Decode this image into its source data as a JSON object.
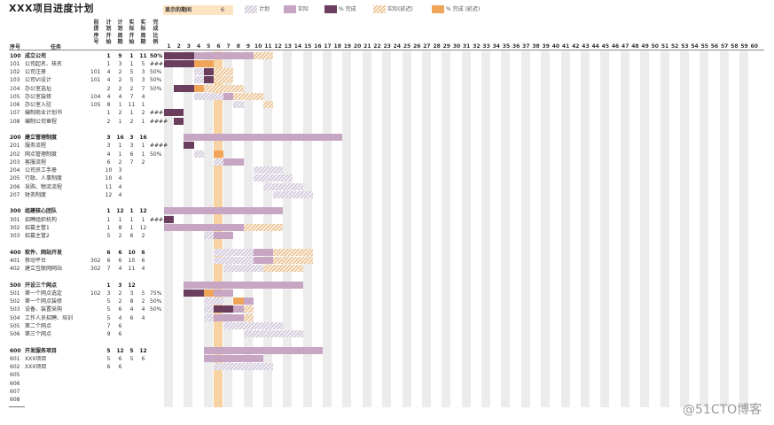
{
  "title": "XXX项目进度计划",
  "highlight": {
    "label": "显示的期间",
    "value": "6",
    "period": 6
  },
  "legend": [
    {
      "key": "plan",
      "label": "计划"
    },
    {
      "key": "actual",
      "label": "实际"
    },
    {
      "key": "done",
      "label": "% 完成"
    },
    {
      "key": "overdue",
      "label": "实际(延迟)"
    },
    {
      "key": "doneover",
      "label": "% 完成 (延迟)"
    }
  ],
  "headers": {
    "seq": "序号",
    "task": "任务",
    "pre": "前提序号",
    "plan_start": "计划开始",
    "plan_dur": "计划周期",
    "act_start": "实际开始",
    "act_dur": "实际周期",
    "pct": "完成比例"
  },
  "days": [
    1,
    2,
    3,
    4,
    5,
    6,
    7,
    8,
    9,
    10,
    11,
    12,
    13,
    14,
    15,
    16,
    17,
    18,
    19,
    20,
    21,
    22,
    23,
    24,
    25,
    26,
    27,
    28,
    29,
    30,
    31,
    32,
    33,
    34,
    35,
    36,
    37,
    38,
    39,
    40,
    41,
    42,
    43,
    44,
    45,
    46,
    47,
    48,
    49,
    50,
    51,
    52,
    53,
    54,
    55,
    56,
    57,
    58,
    59,
    60
  ],
  "rows": [
    {
      "id": "100",
      "name": "成立公司",
      "pre": "",
      "ps": "1",
      "pd": "9",
      "as": "1",
      "ad": "11",
      "pct": "50%",
      "section": true
    },
    {
      "id": "101",
      "name": "公司起名、核名",
      "pre": "",
      "ps": "1",
      "pd": "3",
      "as": "1",
      "ad": "5",
      "pct": "####"
    },
    {
      "id": "102",
      "name": "公司注册",
      "pre": "101",
      "ps": "4",
      "pd": "2",
      "as": "5",
      "ad": "3",
      "pct": "50%"
    },
    {
      "id": "103",
      "name": "公司VI设计",
      "pre": "101",
      "ps": "4",
      "pd": "2",
      "as": "5",
      "ad": "3",
      "pct": "50%"
    },
    {
      "id": "104",
      "name": "办公室选址",
      "pre": "",
      "ps": "2",
      "pd": "2",
      "as": "2",
      "ad": "7",
      "pct": "50%"
    },
    {
      "id": "105",
      "name": "办公室装修",
      "pre": "104",
      "ps": "4",
      "pd": "4",
      "as": "7",
      "ad": "4",
      "pct": ""
    },
    {
      "id": "106",
      "name": "办公室入驻",
      "pre": "105",
      "ps": "8",
      "pd": "1",
      "as": "11",
      "ad": "1",
      "pct": ""
    },
    {
      "id": "107",
      "name": "编制商业计划书",
      "pre": "",
      "ps": "1",
      "pd": "2",
      "as": "1",
      "ad": "2",
      "pct": "####"
    },
    {
      "id": "108",
      "name": "编制公司章程",
      "pre": "",
      "ps": "2",
      "pd": "1",
      "as": "2",
      "ad": "1",
      "pct": "####"
    },
    {
      "id": "",
      "name": "",
      "pre": "",
      "ps": "",
      "pd": "",
      "as": "",
      "ad": "",
      "pct": ""
    },
    {
      "id": "200",
      "name": "建立管理制度",
      "pre": "",
      "ps": "3",
      "pd": "16",
      "as": "3",
      "ad": "16",
      "pct": "",
      "section": true
    },
    {
      "id": "201",
      "name": "服务流程",
      "pre": "",
      "ps": "3",
      "pd": "1",
      "as": "3",
      "ad": "1",
      "pct": "####"
    },
    {
      "id": "202",
      "name": "网点管理制度",
      "pre": "",
      "ps": "4",
      "pd": "1",
      "as": "6",
      "ad": "1",
      "pct": "50%"
    },
    {
      "id": "203",
      "name": "客服流程",
      "pre": "",
      "ps": "6",
      "pd": "2",
      "as": "7",
      "ad": "2",
      "pct": ""
    },
    {
      "id": "204",
      "name": "公司员工手册",
      "pre": "",
      "ps": "10",
      "pd": "3",
      "as": "",
      "ad": "",
      "pct": ""
    },
    {
      "id": "205",
      "name": "行政、人事制度",
      "pre": "",
      "ps": "10",
      "pd": "4",
      "as": "",
      "ad": "",
      "pct": ""
    },
    {
      "id": "206",
      "name": "采购、物流流程",
      "pre": "",
      "ps": "11",
      "pd": "4",
      "as": "",
      "ad": "",
      "pct": ""
    },
    {
      "id": "207",
      "name": "财务制度",
      "pre": "",
      "ps": "12",
      "pd": "4",
      "as": "",
      "ad": "",
      "pct": ""
    },
    {
      "id": "",
      "name": "",
      "pre": "",
      "ps": "",
      "pd": "",
      "as": "",
      "ad": "",
      "pct": ""
    },
    {
      "id": "300",
      "name": "组建核心团队",
      "pre": "",
      "ps": "1",
      "pd": "12",
      "as": "1",
      "ad": "12",
      "pct": "",
      "section": true
    },
    {
      "id": "301",
      "name": "招聘组织机构",
      "pre": "",
      "ps": "1",
      "pd": "1",
      "as": "1",
      "ad": "1",
      "pct": "####"
    },
    {
      "id": "302",
      "name": "招募主管1",
      "pre": "",
      "ps": "1",
      "pd": "8",
      "as": "1",
      "ad": "12",
      "pct": ""
    },
    {
      "id": "303",
      "name": "招募主管2",
      "pre": "",
      "ps": "5",
      "pd": "2",
      "as": "6",
      "ad": "2",
      "pct": ""
    },
    {
      "id": "",
      "name": "",
      "pre": "",
      "ps": "",
      "pd": "",
      "as": "",
      "ad": "",
      "pct": ""
    },
    {
      "id": "400",
      "name": "软件、网站开发",
      "pre": "",
      "ps": "6",
      "pd": "6",
      "as": "10",
      "ad": "6",
      "pct": "",
      "section": true
    },
    {
      "id": "401",
      "name": "移动平台",
      "pre": "302",
      "ps": "6",
      "pd": "6",
      "as": "10",
      "ad": "6",
      "pct": ""
    },
    {
      "id": "402",
      "name": "建立互联网网站",
      "pre": "302",
      "ps": "7",
      "pd": "4",
      "as": "11",
      "ad": "4",
      "pct": ""
    },
    {
      "id": "",
      "name": "",
      "pre": "",
      "ps": "",
      "pd": "",
      "as": "",
      "ad": "",
      "pct": ""
    },
    {
      "id": "500",
      "name": "开设三个网点",
      "pre": "",
      "ps": "1",
      "pd": "3",
      "as": "12",
      "ad": "",
      "pct": "",
      "section": true
    },
    {
      "id": "501",
      "name": "第一个网点选定",
      "pre": "102",
      "ps": "3",
      "pd": "2",
      "as": "3",
      "ad": "5",
      "pct": "75%"
    },
    {
      "id": "502",
      "name": "第一个网点装修",
      "pre": "",
      "ps": "5",
      "pd": "2",
      "as": "8",
      "ad": "2",
      "pct": "50%"
    },
    {
      "id": "503",
      "name": "设备、装置采购",
      "pre": "",
      "ps": "5",
      "pd": "6",
      "as": "4",
      "ad": "4",
      "pct": "50%"
    },
    {
      "id": "504",
      "name": "工作人员招聘、培训",
      "pre": "",
      "ps": "5",
      "pd": "4",
      "as": "6",
      "ad": "4",
      "pct": ""
    },
    {
      "id": "505",
      "name": "第二个网点",
      "pre": "",
      "ps": "7",
      "pd": "6",
      "as": "",
      "ad": "",
      "pct": ""
    },
    {
      "id": "506",
      "name": "第三个网点",
      "pre": "",
      "ps": "9",
      "pd": "6",
      "as": "",
      "ad": "",
      "pct": ""
    },
    {
      "id": "",
      "name": "",
      "pre": "",
      "ps": "",
      "pd": "",
      "as": "",
      "ad": "",
      "pct": ""
    },
    {
      "id": "600",
      "name": "开发服务项目",
      "pre": "",
      "ps": "5",
      "pd": "12",
      "as": "5",
      "ad": "12",
      "pct": "",
      "section": true
    },
    {
      "id": "601",
      "name": "XXX项目",
      "pre": "",
      "ps": "5",
      "pd": "6",
      "as": "5",
      "ad": "6",
      "pct": ""
    },
    {
      "id": "602",
      "name": "XXX项目",
      "pre": "",
      "ps": "6",
      "pd": "6",
      "as": "",
      "ad": "",
      "pct": ""
    },
    {
      "id": "605",
      "name": "",
      "pre": "",
      "ps": "",
      "pd": "",
      "as": "",
      "ad": "",
      "pct": ""
    },
    {
      "id": "606",
      "name": "",
      "pre": "",
      "ps": "",
      "pd": "",
      "as": "",
      "ad": "",
      "pct": ""
    },
    {
      "id": "607",
      "name": "",
      "pre": "",
      "ps": "",
      "pd": "",
      "as": "",
      "ad": "",
      "pct": ""
    },
    {
      "id": "608",
      "name": "",
      "pre": "",
      "ps": "",
      "pd": "",
      "as": "",
      "ad": "",
      "pct": ""
    }
  ],
  "bars": [
    {
      "row": 0,
      "start": 1,
      "dur": 9,
      "kind": "plan"
    },
    {
      "row": 0,
      "start": 1,
      "dur": 11,
      "kind": "actual"
    },
    {
      "row": 0,
      "start": 1,
      "dur": 3,
      "kind": "done"
    },
    {
      "row": 0,
      "start": 10,
      "dur": 2,
      "kind": "overdue"
    },
    {
      "row": 1,
      "start": 1,
      "dur": 3,
      "kind": "done"
    },
    {
      "row": 1,
      "start": 4,
      "dur": 2,
      "kind": "doneover"
    },
    {
      "row": 2,
      "start": 4,
      "dur": 2,
      "kind": "plan"
    },
    {
      "row": 2,
      "start": 5,
      "dur": 1,
      "kind": "done"
    },
    {
      "row": 2,
      "start": 6,
      "dur": 2,
      "kind": "overdue"
    },
    {
      "row": 3,
      "start": 4,
      "dur": 2,
      "kind": "plan"
    },
    {
      "row": 3,
      "start": 5,
      "dur": 1,
      "kind": "done"
    },
    {
      "row": 3,
      "start": 6,
      "dur": 2,
      "kind": "overdue"
    },
    {
      "row": 4,
      "start": 2,
      "dur": 2,
      "kind": "done"
    },
    {
      "row": 4,
      "start": 4,
      "dur": 1,
      "kind": "doneover"
    },
    {
      "row": 4,
      "start": 5,
      "dur": 4,
      "kind": "overdue"
    },
    {
      "row": 5,
      "start": 4,
      "dur": 4,
      "kind": "plan"
    },
    {
      "row": 5,
      "start": 7,
      "dur": 1,
      "kind": "actual"
    },
    {
      "row": 5,
      "start": 8,
      "dur": 3,
      "kind": "overdue"
    },
    {
      "row": 6,
      "start": 8,
      "dur": 1,
      "kind": "plan"
    },
    {
      "row": 6,
      "start": 11,
      "dur": 1,
      "kind": "overdue"
    },
    {
      "row": 7,
      "start": 1,
      "dur": 2,
      "kind": "done"
    },
    {
      "row": 8,
      "start": 2,
      "dur": 1,
      "kind": "done"
    },
    {
      "row": 10,
      "start": 3,
      "dur": 16,
      "kind": "actual"
    },
    {
      "row": 11,
      "start": 3,
      "dur": 1,
      "kind": "done"
    },
    {
      "row": 12,
      "start": 4,
      "dur": 1,
      "kind": "plan"
    },
    {
      "row": 12,
      "start": 6,
      "dur": 1,
      "kind": "doneover"
    },
    {
      "row": 13,
      "start": 6,
      "dur": 1,
      "kind": "plan"
    },
    {
      "row": 13,
      "start": 7,
      "dur": 2,
      "kind": "actual"
    },
    {
      "row": 14,
      "start": 10,
      "dur": 3,
      "kind": "plan"
    },
    {
      "row": 15,
      "start": 10,
      "dur": 4,
      "kind": "plan"
    },
    {
      "row": 16,
      "start": 11,
      "dur": 4,
      "kind": "plan"
    },
    {
      "row": 17,
      "start": 12,
      "dur": 4,
      "kind": "plan"
    },
    {
      "row": 19,
      "start": 1,
      "dur": 12,
      "kind": "actual"
    },
    {
      "row": 20,
      "start": 1,
      "dur": 1,
      "kind": "done"
    },
    {
      "row": 21,
      "start": 1,
      "dur": 8,
      "kind": "actual"
    },
    {
      "row": 21,
      "start": 9,
      "dur": 4,
      "kind": "overdue"
    },
    {
      "row": 22,
      "start": 5,
      "dur": 1,
      "kind": "plan"
    },
    {
      "row": 22,
      "start": 6,
      "dur": 2,
      "kind": "actual"
    },
    {
      "row": 24,
      "start": 6,
      "dur": 4,
      "kind": "plan"
    },
    {
      "row": 24,
      "start": 10,
      "dur": 6,
      "kind": "overdue"
    },
    {
      "row": 24,
      "start": 10,
      "dur": 2,
      "kind": "actual"
    },
    {
      "row": 25,
      "start": 6,
      "dur": 4,
      "kind": "plan"
    },
    {
      "row": 25,
      "start": 10,
      "dur": 2,
      "kind": "actual"
    },
    {
      "row": 25,
      "start": 12,
      "dur": 4,
      "kind": "overdue"
    },
    {
      "row": 26,
      "start": 7,
      "dur": 4,
      "kind": "plan"
    },
    {
      "row": 26,
      "start": 11,
      "dur": 4,
      "kind": "overdue"
    },
    {
      "row": 28,
      "start": 3,
      "dur": 12,
      "kind": "actual"
    },
    {
      "row": 29,
      "start": 3,
      "dur": 2,
      "kind": "done"
    },
    {
      "row": 29,
      "start": 5,
      "dur": 1,
      "kind": "doneover"
    },
    {
      "row": 29,
      "start": 6,
      "dur": 2,
      "kind": "actual"
    },
    {
      "row": 30,
      "start": 5,
      "dur": 2,
      "kind": "plan"
    },
    {
      "row": 30,
      "start": 8,
      "dur": 1,
      "kind": "doneover"
    },
    {
      "row": 30,
      "start": 9,
      "dur": 1,
      "kind": "actual"
    },
    {
      "row": 31,
      "start": 5,
      "dur": 1,
      "kind": "plan"
    },
    {
      "row": 31,
      "start": 6,
      "dur": 2,
      "kind": "done"
    },
    {
      "row": 31,
      "start": 8,
      "dur": 1,
      "kind": "actual"
    },
    {
      "row": 31,
      "start": 9,
      "dur": 1,
      "kind": "overdue"
    },
    {
      "row": 32,
      "start": 5,
      "dur": 1,
      "kind": "plan"
    },
    {
      "row": 32,
      "start": 6,
      "dur": 3,
      "kind": "actual"
    },
    {
      "row": 32,
      "start": 9,
      "dur": 1,
      "kind": "overdue"
    },
    {
      "row": 33,
      "start": 7,
      "dur": 6,
      "kind": "plan"
    },
    {
      "row": 34,
      "start": 9,
      "dur": 6,
      "kind": "plan"
    },
    {
      "row": 36,
      "start": 5,
      "dur": 12,
      "kind": "actual"
    },
    {
      "row": 37,
      "start": 5,
      "dur": 6,
      "kind": "actual"
    },
    {
      "row": 38,
      "start": 6,
      "dur": 6,
      "kind": "plan"
    }
  ]
}
